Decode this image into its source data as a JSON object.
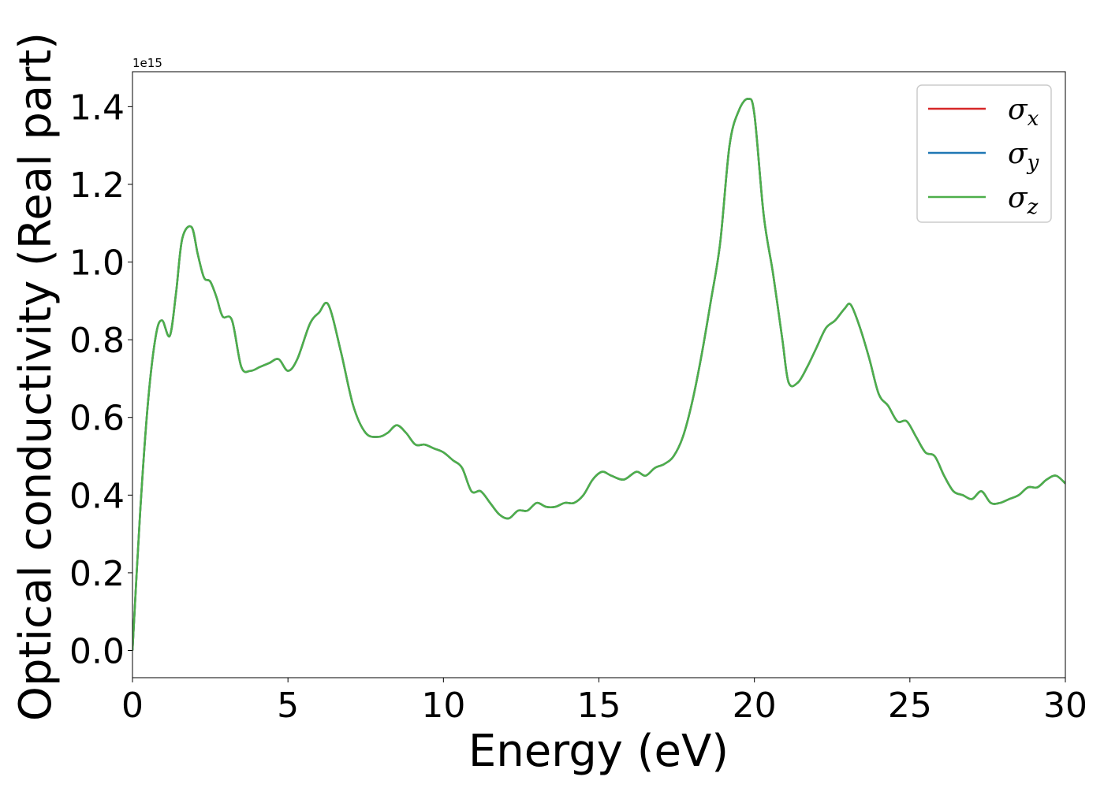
{
  "chart_data": {
    "type": "line",
    "xlabel": "Energy (eV)",
    "ylabel": "Optical conductivity (Real part)",
    "y_offset_label": "1e15",
    "xlim": [
      0,
      30
    ],
    "ylim": [
      -0.07,
      1.49
    ],
    "xticks": [
      0,
      5,
      10,
      15,
      20,
      25,
      30
    ],
    "xtick_labels": [
      "0",
      "5",
      "10",
      "15",
      "20",
      "25",
      "30"
    ],
    "yticks": [
      0.0,
      0.2,
      0.4,
      0.6,
      0.8,
      1.0,
      1.2,
      1.4
    ],
    "ytick_labels": [
      "0.0",
      "0.2",
      "0.4",
      "0.6",
      "0.8",
      "1.0",
      "1.2",
      "1.4"
    ],
    "grid": false,
    "legend_position": "top-right",
    "x": [
      0,
      0.25,
      0.5,
      0.75,
      0.95,
      1.2,
      1.4,
      1.6,
      1.9,
      2.1,
      2.3,
      2.5,
      2.7,
      2.9,
      3.2,
      3.5,
      3.8,
      4.1,
      4.4,
      4.7,
      5.0,
      5.3,
      5.7,
      6.0,
      6.3,
      6.7,
      7.1,
      7.5,
      7.9,
      8.2,
      8.5,
      8.8,
      9.1,
      9.4,
      9.7,
      10.0,
      10.3,
      10.6,
      10.9,
      11.2,
      11.5,
      11.8,
      12.1,
      12.4,
      12.7,
      13.0,
      13.3,
      13.6,
      13.9,
      14.2,
      14.5,
      14.8,
      15.1,
      15.4,
      15.8,
      16.2,
      16.5,
      16.8,
      17.1,
      17.4,
      17.7,
      18.0,
      18.3,
      18.6,
      18.9,
      19.2,
      19.5,
      19.8,
      20.0,
      20.3,
      20.6,
      20.9,
      21.1,
      21.4,
      21.7,
      22.0,
      22.3,
      22.6,
      22.9,
      23.1,
      23.4,
      23.7,
      24.0,
      24.3,
      24.6,
      24.9,
      25.2,
      25.5,
      25.8,
      26.1,
      26.4,
      26.7,
      27.0,
      27.3,
      27.6,
      27.9,
      28.2,
      28.5,
      28.8,
      29.1,
      29.4,
      29.7,
      30.0
    ],
    "series": [
      {
        "name": "σx",
        "color": "#d62728",
        "y": [
          0.0,
          0.36,
          0.64,
          0.81,
          0.85,
          0.81,
          0.92,
          1.06,
          1.09,
          1.02,
          0.96,
          0.95,
          0.91,
          0.86,
          0.85,
          0.73,
          0.72,
          0.73,
          0.74,
          0.75,
          0.72,
          0.75,
          0.84,
          0.87,
          0.89,
          0.77,
          0.63,
          0.56,
          0.55,
          0.56,
          0.58,
          0.56,
          0.53,
          0.53,
          0.52,
          0.51,
          0.49,
          0.47,
          0.41,
          0.41,
          0.38,
          0.35,
          0.34,
          0.36,
          0.36,
          0.38,
          0.37,
          0.37,
          0.38,
          0.38,
          0.4,
          0.44,
          0.46,
          0.45,
          0.44,
          0.46,
          0.45,
          0.47,
          0.48,
          0.5,
          0.55,
          0.64,
          0.76,
          0.9,
          1.05,
          1.3,
          1.39,
          1.42,
          1.38,
          1.12,
          0.97,
          0.8,
          0.69,
          0.69,
          0.73,
          0.78,
          0.83,
          0.85,
          0.88,
          0.89,
          0.83,
          0.75,
          0.66,
          0.63,
          0.59,
          0.59,
          0.55,
          0.51,
          0.5,
          0.45,
          0.41,
          0.4,
          0.39,
          0.41,
          0.38,
          0.38,
          0.39,
          0.4,
          0.42,
          0.42,
          0.44,
          0.45,
          0.43
        ]
      },
      {
        "name": "σy",
        "color": "#1f77b4",
        "y": [
          0.0,
          0.36,
          0.64,
          0.81,
          0.85,
          0.81,
          0.92,
          1.06,
          1.09,
          1.02,
          0.96,
          0.95,
          0.91,
          0.86,
          0.85,
          0.73,
          0.72,
          0.73,
          0.74,
          0.75,
          0.72,
          0.75,
          0.84,
          0.87,
          0.89,
          0.77,
          0.63,
          0.56,
          0.55,
          0.56,
          0.58,
          0.56,
          0.53,
          0.53,
          0.52,
          0.51,
          0.49,
          0.47,
          0.41,
          0.41,
          0.38,
          0.35,
          0.34,
          0.36,
          0.36,
          0.38,
          0.37,
          0.37,
          0.38,
          0.38,
          0.4,
          0.44,
          0.46,
          0.45,
          0.44,
          0.46,
          0.45,
          0.47,
          0.48,
          0.5,
          0.55,
          0.64,
          0.76,
          0.9,
          1.05,
          1.3,
          1.39,
          1.42,
          1.38,
          1.12,
          0.97,
          0.8,
          0.69,
          0.69,
          0.73,
          0.78,
          0.83,
          0.85,
          0.88,
          0.89,
          0.83,
          0.75,
          0.66,
          0.63,
          0.59,
          0.59,
          0.55,
          0.51,
          0.5,
          0.45,
          0.41,
          0.4,
          0.39,
          0.41,
          0.38,
          0.38,
          0.39,
          0.4,
          0.42,
          0.42,
          0.44,
          0.45,
          0.43
        ]
      },
      {
        "name": "σz",
        "color": "#4daf4a",
        "y": [
          0.0,
          0.36,
          0.64,
          0.81,
          0.85,
          0.81,
          0.92,
          1.06,
          1.09,
          1.02,
          0.96,
          0.95,
          0.91,
          0.86,
          0.85,
          0.73,
          0.72,
          0.73,
          0.74,
          0.75,
          0.72,
          0.75,
          0.84,
          0.87,
          0.89,
          0.77,
          0.63,
          0.56,
          0.55,
          0.56,
          0.58,
          0.56,
          0.53,
          0.53,
          0.52,
          0.51,
          0.49,
          0.47,
          0.41,
          0.41,
          0.38,
          0.35,
          0.34,
          0.36,
          0.36,
          0.38,
          0.37,
          0.37,
          0.38,
          0.38,
          0.4,
          0.44,
          0.46,
          0.45,
          0.44,
          0.46,
          0.45,
          0.47,
          0.48,
          0.5,
          0.55,
          0.64,
          0.76,
          0.9,
          1.05,
          1.3,
          1.39,
          1.42,
          1.38,
          1.12,
          0.97,
          0.8,
          0.69,
          0.69,
          0.73,
          0.78,
          0.83,
          0.85,
          0.88,
          0.89,
          0.83,
          0.75,
          0.66,
          0.63,
          0.59,
          0.59,
          0.55,
          0.51,
          0.5,
          0.45,
          0.41,
          0.4,
          0.39,
          0.41,
          0.38,
          0.38,
          0.39,
          0.4,
          0.42,
          0.42,
          0.44,
          0.45,
          0.43
        ]
      }
    ],
    "legend": [
      {
        "symbol": "σ",
        "subscript": "x"
      },
      {
        "symbol": "σ",
        "subscript": "y"
      },
      {
        "symbol": "σ",
        "subscript": "z"
      }
    ]
  }
}
